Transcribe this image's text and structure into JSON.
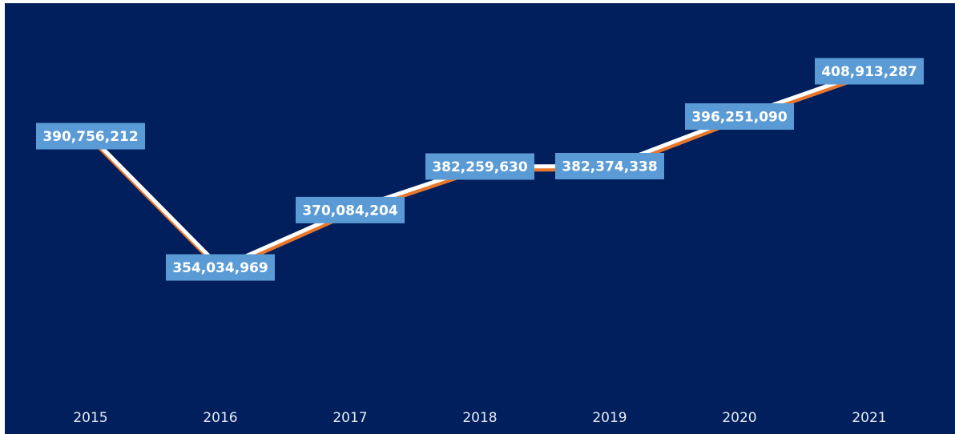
{
  "chart_data": {
    "type": "line",
    "title": "",
    "xlabel": "",
    "ylabel": "",
    "categories": [
      "2015",
      "2016",
      "2017",
      "2018",
      "2019",
      "2020",
      "2021"
    ],
    "series": [
      {
        "values": [
          390756212,
          354034969,
          370084204,
          382259630,
          382374338,
          396251090,
          408913287
        ],
        "labels": [
          "390,756,212",
          "354,034,969",
          "370,084,204",
          "382,259,630",
          "382,374,338",
          "396,251,090",
          "408,913,287"
        ]
      }
    ],
    "grid": false,
    "legend": "none",
    "colors": {
      "background": "#001f5c",
      "line": "#ffffff",
      "line_shadow": "#e8762b",
      "label_box": "#5b9bd5",
      "label_text": "#ffffff",
      "drop_line": "#ffffff",
      "tick_text": "#e6ebf5"
    }
  }
}
